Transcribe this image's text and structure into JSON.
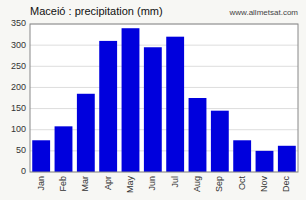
{
  "chart_data": {
    "type": "bar",
    "title": "Maceió : precipitation (mm)",
    "categories": [
      "Jan",
      "Feb",
      "Mar",
      "Apr",
      "May",
      "Jun",
      "Jul",
      "Aug",
      "Sep",
      "Oct",
      "Nov",
      "Dec"
    ],
    "values": [
      75,
      108,
      185,
      310,
      340,
      295,
      320,
      175,
      145,
      75,
      50,
      62
    ],
    "color": "#0000dd",
    "ylim": [
      0,
      350
    ],
    "yticks": [
      0,
      50,
      100,
      150,
      200,
      250,
      300,
      350
    ],
    "grid": true,
    "annotations": [
      "www.allmetsat.com"
    ]
  }
}
